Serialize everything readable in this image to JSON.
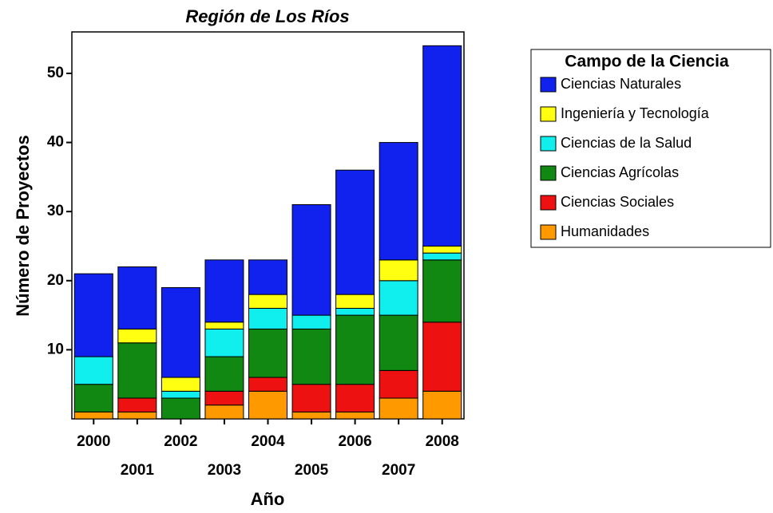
{
  "chart_data": {
    "type": "stacked_bar",
    "title": "Región de Los Ríos",
    "x_label": "Año",
    "y_label": "Número de Proyectos",
    "legend_title": "Campo de la Ciencia",
    "categories": [
      "2000",
      "2001",
      "2002",
      "2003",
      "2004",
      "2005",
      "2006",
      "2007",
      "2008"
    ],
    "series": [
      {
        "name": "Humanidades",
        "color": "#ff9900",
        "values": [
          1,
          1,
          0,
          2,
          4,
          1,
          1,
          3,
          4
        ]
      },
      {
        "name": "Ciencias Sociales",
        "color": "#ee1111",
        "values": [
          0,
          2,
          0,
          2,
          2,
          4,
          4,
          4,
          10
        ]
      },
      {
        "name": "Ciencias Agrícolas",
        "color": "#118811",
        "values": [
          4,
          8,
          3,
          5,
          7,
          8,
          10,
          8,
          9
        ]
      },
      {
        "name": "Ciencias de la Salud",
        "color": "#11eeee",
        "values": [
          4,
          0,
          1,
          4,
          3,
          2,
          1,
          5,
          1
        ]
      },
      {
        "name": "Ingeniería y Tecnología",
        "color": "#ffff11",
        "values": [
          0,
          2,
          2,
          1,
          2,
          0,
          2,
          3,
          1
        ]
      },
      {
        "name": "Ciencias Naturales",
        "color": "#1122ee",
        "values": [
          12,
          9,
          13,
          9,
          5,
          16,
          18,
          17,
          29
        ]
      }
    ],
    "ylim": [
      0,
      56
    ],
    "yticks": [
      10,
      20,
      30,
      40,
      50
    ],
    "legend": "right"
  }
}
